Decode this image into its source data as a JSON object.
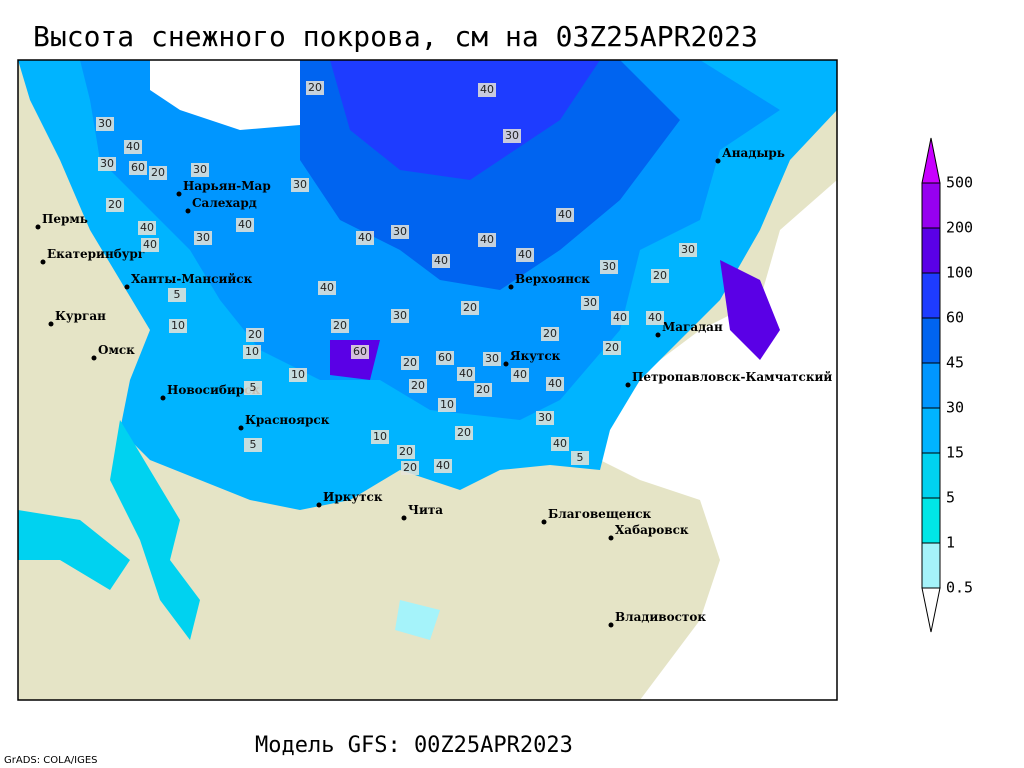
{
  "title": "Высота снежного покрова, см на 03Z25APR2023",
  "footer": "Модель GFS: 00Z25APR2023",
  "credit": "GrADS: COLA/IGES",
  "legend": {
    "levels": [
      0.5,
      1,
      5,
      15,
      30,
      45,
      60,
      100,
      200,
      500
    ],
    "colors": [
      "#ffffff",
      "#a5f3fa",
      "#00e6e6",
      "#00d2f0",
      "#00b4ff",
      "#0096ff",
      "#0064f0",
      "#1e3cff",
      "#5a00e6",
      "#9600f0",
      "#c800ff"
    ]
  },
  "cities": [
    "Нарьян-Мар",
    "Салехард",
    "Пермь",
    "Екатеринбург",
    "Ханты-Мансийск",
    "Курган",
    "Омск",
    "Новосибирск",
    "Красноярск",
    "Иркутск",
    "Чита",
    "Благовещенск",
    "Хабаровск",
    "Владивосток",
    "Верхоянск",
    "Якутск",
    "Магадан",
    "Петропавловск-Камчатский",
    "Анадырь"
  ],
  "contour_labels": [
    20,
    40,
    30,
    30,
    40,
    20,
    40,
    30,
    60,
    30,
    20,
    40,
    30,
    40,
    40,
    30,
    40,
    40,
    20,
    30,
    40,
    40,
    30,
    20,
    40,
    20,
    30,
    20,
    20,
    60,
    60,
    30,
    40,
    20,
    40,
    10,
    40,
    10,
    20,
    5,
    10,
    20,
    10,
    5,
    30,
    40,
    20,
    30,
    40,
    40,
    20,
    20,
    40,
    30,
    5,
    10,
    20,
    5
  ]
}
